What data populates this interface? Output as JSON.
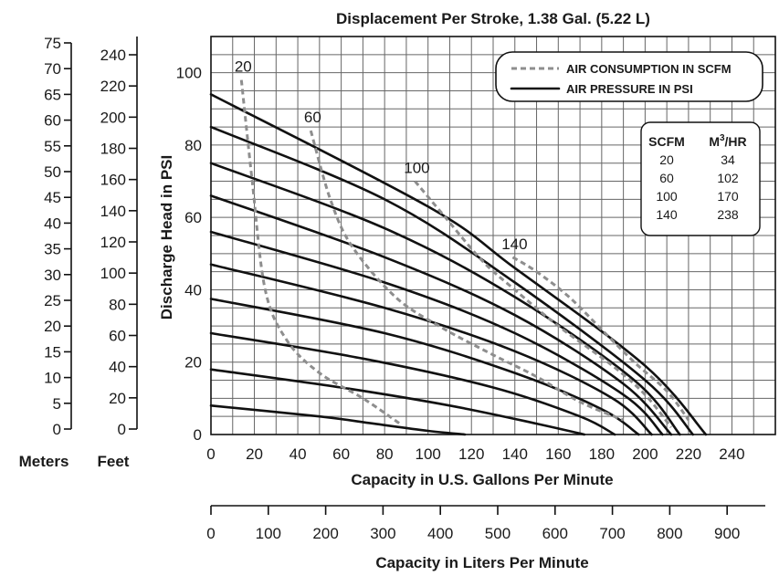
{
  "chart_data": {
    "type": "line",
    "title": "Displacement Per Stroke, 1.38 Gal. (5.22 L)",
    "xlabel": "Capacity in U.S. Gallons Per Minute",
    "ylabel": "Discharge Head in PSI",
    "xlim": [
      0,
      260
    ],
    "ylim": [
      0,
      110
    ],
    "x_ticks": [
      "0",
      "20",
      "40",
      "60",
      "80",
      "100",
      "120",
      "140",
      "160",
      "180",
      "200",
      "220",
      "240"
    ],
    "y_ticks": [
      "0",
      "20",
      "40",
      "60",
      "80",
      "100"
    ],
    "x2_label": "Capacity in Liters Per Minute",
    "x2_ticks": [
      "0",
      "100",
      "200",
      "300",
      "400",
      "500",
      "600",
      "700",
      "800",
      "900"
    ],
    "meters_label": "Meters",
    "meters_ticks": [
      "0",
      "5",
      "10",
      "15",
      "20",
      "25",
      "30",
      "35",
      "40",
      "45",
      "50",
      "55",
      "60",
      "65",
      "70",
      "75"
    ],
    "feet_label": "Feet",
    "feet_ticks": [
      "0",
      "20",
      "40",
      "60",
      "80",
      "100",
      "120",
      "140",
      "160",
      "180",
      "200",
      "220",
      "240"
    ],
    "legend": {
      "air_consumption": "AIR CONSUMPTION IN SCFM",
      "air_pressure": "AIR PRESSURE IN PSI"
    },
    "scfm_table": {
      "headers": [
        "SCFM",
        "M3/HR"
      ],
      "rows": [
        [
          "20",
          "34"
        ],
        [
          "60",
          "102"
        ],
        [
          "100",
          "170"
        ],
        [
          "140",
          "238"
        ]
      ]
    },
    "grid": true,
    "air_pressure_curves": [
      {
        "points": [
          [
            0,
            8
          ],
          [
            50,
            5
          ],
          [
            75,
            3
          ],
          [
            100,
            1
          ],
          [
            117,
            0
          ]
        ]
      },
      {
        "points": [
          [
            0,
            18
          ],
          [
            60,
            13
          ],
          [
            110,
            8
          ],
          [
            150,
            3
          ],
          [
            172,
            0
          ]
        ]
      },
      {
        "points": [
          [
            0,
            28
          ],
          [
            70,
            21
          ],
          [
            130,
            13
          ],
          [
            170,
            5
          ],
          [
            186,
            0
          ]
        ]
      },
      {
        "points": [
          [
            0,
            37.5
          ],
          [
            80,
            28
          ],
          [
            140,
            17
          ],
          [
            180,
            7
          ],
          [
            197,
            0
          ]
        ]
      },
      {
        "points": [
          [
            0,
            47
          ],
          [
            80,
            35
          ],
          [
            140,
            23
          ],
          [
            185,
            10
          ],
          [
            203,
            0
          ]
        ]
      },
      {
        "points": [
          [
            0,
            56
          ],
          [
            80,
            42
          ],
          [
            140,
            28
          ],
          [
            190,
            11
          ],
          [
            208,
            0
          ]
        ]
      },
      {
        "points": [
          [
            0,
            66
          ],
          [
            80,
            49
          ],
          [
            140,
            33
          ],
          [
            190,
            14
          ],
          [
            212,
            0
          ]
        ]
      },
      {
        "points": [
          [
            0,
            75
          ],
          [
            80,
            57
          ],
          [
            140,
            38
          ],
          [
            195,
            15
          ],
          [
            216,
            0
          ]
        ]
      },
      {
        "points": [
          [
            0,
            85
          ],
          [
            80,
            65
          ],
          [
            140,
            42
          ],
          [
            200,
            15
          ],
          [
            222,
            0
          ]
        ]
      },
      {
        "points": [
          [
            0,
            94
          ],
          [
            100,
            63
          ],
          [
            140,
            46
          ],
          [
            200,
            19
          ],
          [
            228,
            0
          ]
        ]
      }
    ],
    "air_consumption_curves": [
      {
        "label": "20",
        "points": [
          [
            14,
            98
          ],
          [
            19,
            70
          ],
          [
            25,
            40
          ],
          [
            35,
            26
          ],
          [
            50,
            17
          ],
          [
            70,
            10
          ],
          [
            87,
            3
          ]
        ]
      },
      {
        "label": "60",
        "points": [
          [
            46,
            84
          ],
          [
            55,
            65
          ],
          [
            65,
            52
          ],
          [
            85,
            38
          ],
          [
            105,
            30
          ],
          [
            130,
            22
          ],
          [
            150,
            16
          ],
          [
            170,
            9
          ],
          [
            190,
            4
          ]
        ]
      },
      {
        "label": "100",
        "points": [
          [
            94,
            70
          ],
          [
            108,
            60
          ],
          [
            125,
            48
          ],
          [
            140,
            40
          ],
          [
            160,
            30
          ],
          [
            185,
            19
          ],
          [
            200,
            11
          ],
          [
            212,
            2
          ]
        ]
      },
      {
        "label": "140",
        "points": [
          [
            139,
            49
          ],
          [
            150,
            45
          ],
          [
            165,
            38
          ],
          [
            180,
            29
          ],
          [
            195,
            20
          ],
          [
            210,
            12
          ],
          [
            220,
            4
          ]
        ]
      }
    ]
  }
}
